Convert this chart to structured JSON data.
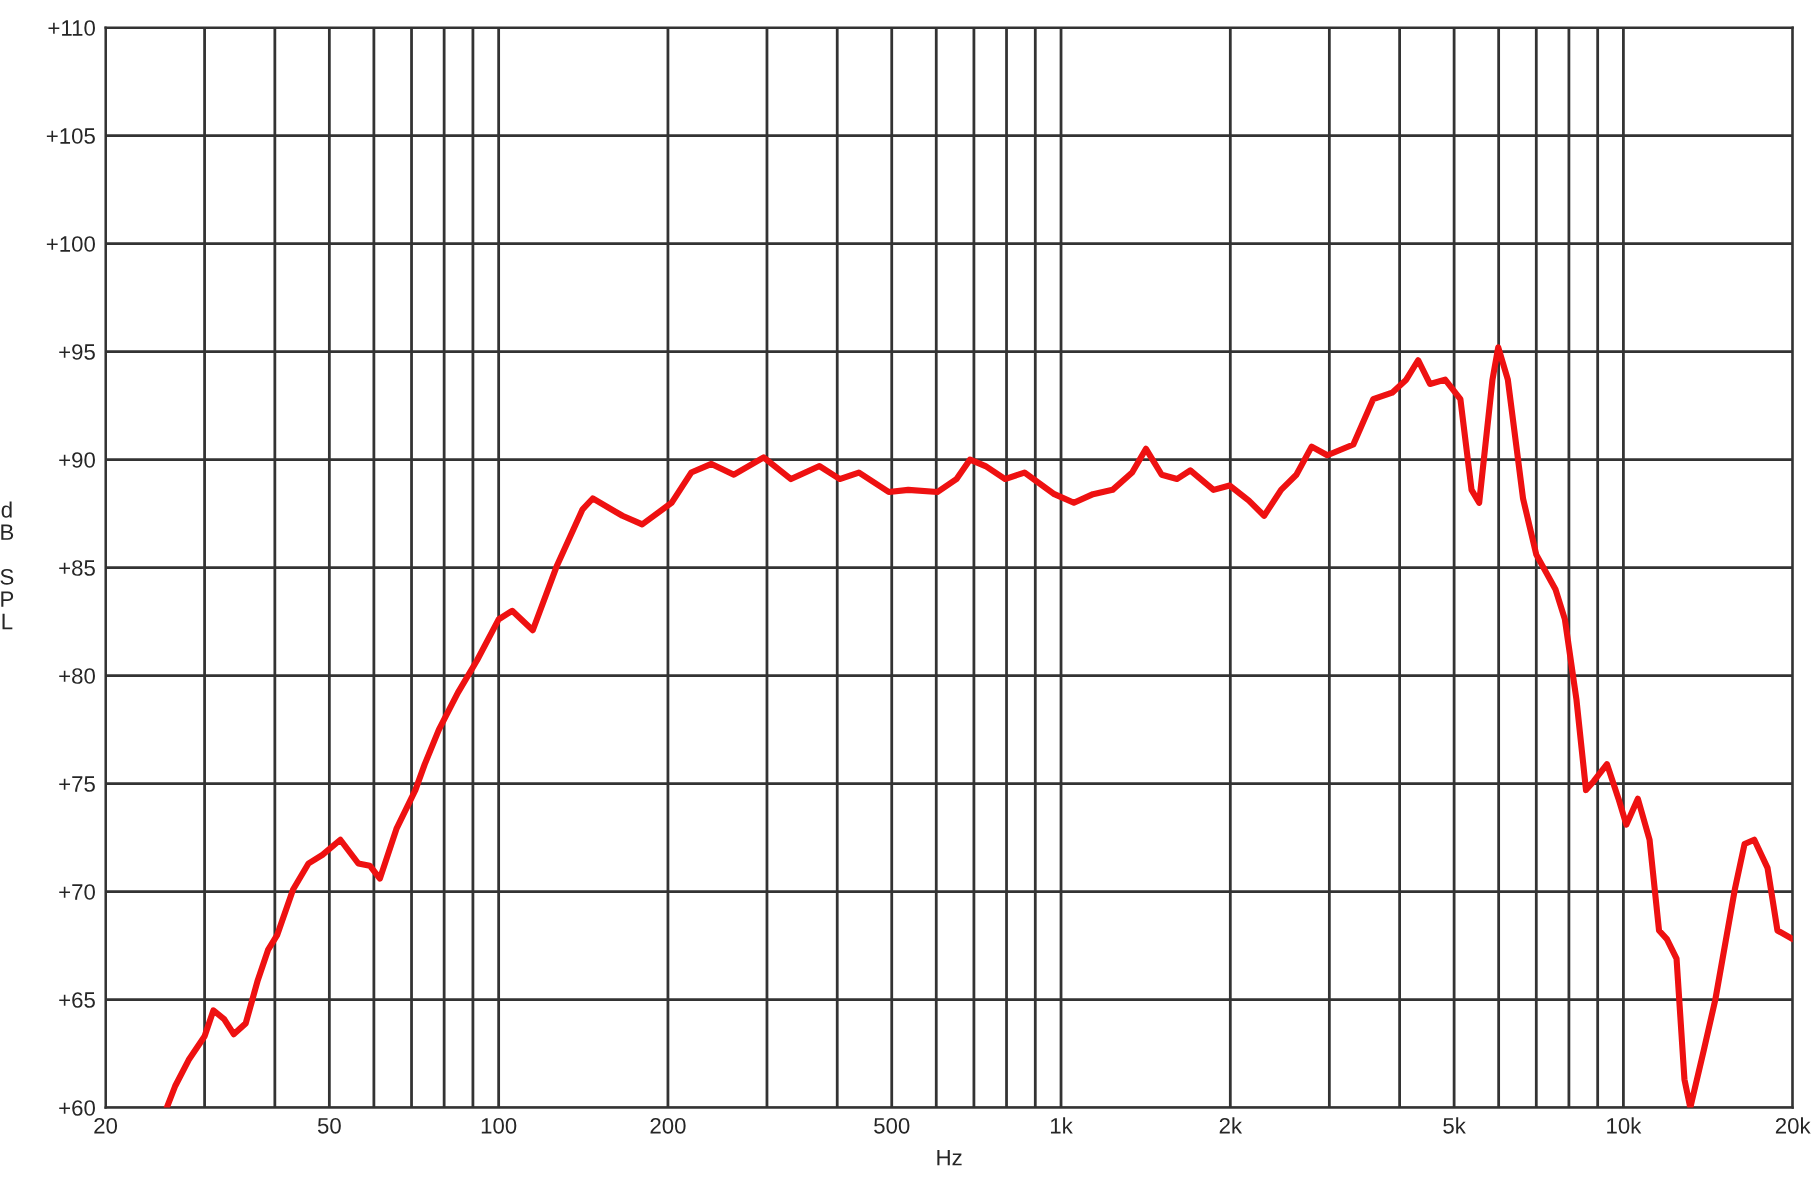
{
  "chart_data": {
    "type": "line",
    "xlabel": "Hz",
    "ylabel": "dB SPL",
    "log": "x",
    "grid": true,
    "legend": false,
    "marker": "none",
    "line_style": "solid",
    "xlim": [
      20,
      20000
    ],
    "ylim": [
      60,
      110
    ],
    "xticks": [
      20,
      {
        "value": 30,
        "label": null
      },
      {
        "value": 40,
        "label": null
      },
      50,
      {
        "value": 60,
        "label": null
      },
      {
        "value": 70,
        "label": null
      },
      {
        "value": 80,
        "label": null
      },
      {
        "value": 90,
        "label": null
      },
      100,
      200,
      {
        "value": 300,
        "label": null
      },
      {
        "value": 400,
        "label": null
      },
      500,
      {
        "value": 600,
        "label": null
      },
      {
        "value": 700,
        "label": null
      },
      {
        "value": 800,
        "label": null
      },
      {
        "value": 900,
        "label": null
      },
      {
        "value": 1000,
        "label": "1k"
      },
      {
        "value": 2000,
        "label": "2k"
      },
      {
        "value": 3000,
        "label": null
      },
      {
        "value": 4000,
        "label": null
      },
      {
        "value": 5000,
        "label": "5k"
      },
      {
        "value": 6000,
        "label": null
      },
      {
        "value": 7000,
        "label": null
      },
      {
        "value": 8000,
        "label": null
      },
      {
        "value": 9000,
        "label": null
      },
      {
        "value": 10000,
        "label": "10k"
      },
      {
        "value": 20000,
        "label": "20k"
      }
    ],
    "yticks": [
      {
        "value": 60,
        "label": "+60"
      },
      {
        "value": 65,
        "label": "+65"
      },
      {
        "value": 70,
        "label": "+70"
      },
      {
        "value": 75,
        "label": "+75"
      },
      {
        "value": 80,
        "label": "+80"
      },
      {
        "value": 85,
        "label": "+85"
      },
      {
        "value": 90,
        "label": "+90"
      },
      {
        "value": 95,
        "label": "+95"
      },
      {
        "value": 100,
        "label": "+100"
      },
      {
        "value": 105,
        "label": "+105"
      },
      {
        "value": 110,
        "label": "+110"
      }
    ],
    "series": [
      {
        "color": "#ee1111",
        "x": [
          25.7,
          26.6,
          28.1,
          30,
          31.1,
          32.5,
          33.8,
          35.5,
          37.3,
          38.9,
          40.4,
          43.1,
          45.9,
          48.6,
          52.3,
          56.3,
          59,
          61.5,
          65.8,
          71.1,
          73.9,
          78.3,
          84.6,
          91.5,
          100,
          105.7,
          115,
          127,
          141,
          147,
          166,
          180,
          203,
          220,
          239,
          262,
          296,
          331,
          372,
          404,
          437,
          494,
          535,
          603,
          652,
          689,
          734,
          795,
          861,
          973,
          1054,
          1140,
          1235,
          1338,
          1416,
          1510,
          1608,
          1698,
          1867,
          1994,
          2158,
          2297,
          2462,
          2621,
          2790,
          2975,
          3310,
          3590,
          3880,
          4110,
          4315,
          4530,
          4820,
          5130,
          5370,
          5540,
          5850,
          5990,
          6230,
          6630,
          7000,
          7570,
          7870,
          8250,
          8580,
          8850,
          9350,
          9800,
          10120,
          10610,
          11130,
          11570,
          11950,
          12430,
          12840,
          13150,
          13910,
          14570,
          15780,
          16420,
          17090,
          18040,
          18790,
          20000
        ],
        "values": [
          60.0,
          61.0,
          62.2,
          63.3,
          64.5,
          64.1,
          63.4,
          63.9,
          65.9,
          67.3,
          68.0,
          70.1,
          71.3,
          71.7,
          72.4,
          71.3,
          71.2,
          70.6,
          72.9,
          74.7,
          75.9,
          77.5,
          79.2,
          80.7,
          82.6,
          83.0,
          82.1,
          85.1,
          87.7,
          88.2,
          87.4,
          87.0,
          88.0,
          89.4,
          89.8,
          89.3,
          90.1,
          89.1,
          89.7,
          89.1,
          89.4,
          88.5,
          88.6,
          88.5,
          89.1,
          90.0,
          89.7,
          89.1,
          89.4,
          88.4,
          88.0,
          88.4,
          88.6,
          89.4,
          90.5,
          89.3,
          89.1,
          89.5,
          88.6,
          88.8,
          88.1,
          87.4,
          88.6,
          89.3,
          90.6,
          90.2,
          90.7,
          92.8,
          93.1,
          93.7,
          94.6,
          93.5,
          93.7,
          92.8,
          88.6,
          88.0,
          93.7,
          95.2,
          93.7,
          88.2,
          85.6,
          84.0,
          82.6,
          78.9,
          74.7,
          75.1,
          75.9,
          74.3,
          73.1,
          74.3,
          72.4,
          68.2,
          67.8,
          66.9,
          61.3,
          60.0,
          62.7,
          65.0,
          70.1,
          72.2,
          72.4,
          71.1,
          68.2,
          67.8
        ]
      }
    ]
  }
}
